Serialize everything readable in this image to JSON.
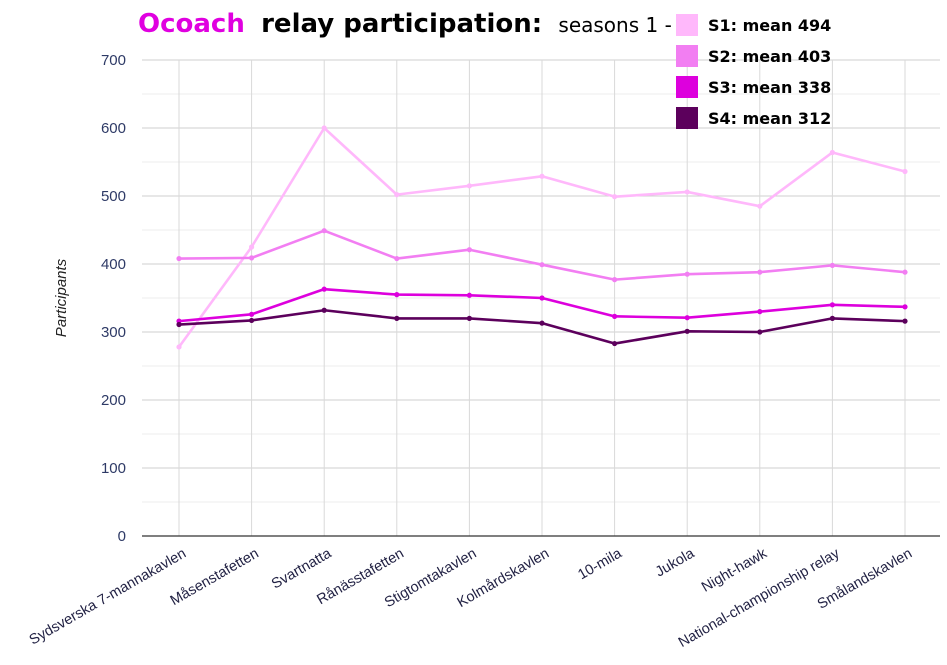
{
  "chart_data": {
    "type": "line",
    "title_brand": "Ocoach",
    "title_main": "relay participation:",
    "title_sub": "seasons 1 - 4",
    "ylabel": "Participants",
    "xlabel": "",
    "ylim": [
      0,
      700
    ],
    "yticks": [
      "0",
      "100",
      "200",
      "300",
      "400",
      "500",
      "600",
      "700"
    ],
    "grid": true,
    "legend_position": "top-right",
    "categories": [
      "Sydsverska 7-mannakavlen",
      "Måsenstafetten",
      "Svartnatta",
      "Rånässtafetten",
      "Stigtomtakavlen",
      "Kolmårdskavlen",
      "10-mila",
      "Jukola",
      "Night-hawk",
      "National-championship relay",
      "Smålandskavlen"
    ],
    "series": [
      {
        "name": "S1: mean 494",
        "color": "#ffb8fb",
        "values": [
          278,
          425,
          600,
          502,
          515,
          529,
          499,
          506,
          485,
          564,
          536
        ]
      },
      {
        "name": "S2: mean 403",
        "color": "#f27ef2",
        "values": [
          408,
          409,
          449,
          408,
          421,
          399,
          377,
          385,
          388,
          398,
          388
        ]
      },
      {
        "name": "S3: mean 338",
        "color": "#dd00dd",
        "values": [
          316,
          326,
          363,
          355,
          354,
          350,
          323,
          321,
          330,
          340,
          337
        ]
      },
      {
        "name": "S4: mean 312",
        "color": "#5c005c",
        "values": [
          311,
          317,
          332,
          320,
          320,
          313,
          283,
          301,
          300,
          320,
          316
        ]
      }
    ]
  }
}
